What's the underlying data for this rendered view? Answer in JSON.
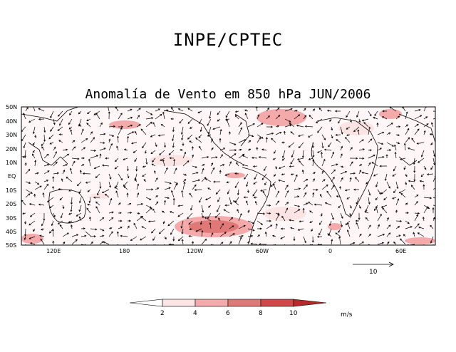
{
  "header": {
    "organization": "INPE/CPTEC",
    "title": "Anomalía de Vento em 850 hPa JUN/2006"
  },
  "map": {
    "lat_labels": [
      "50N",
      "40N",
      "30N",
      "20N",
      "10N",
      "EQ",
      "10S",
      "20S",
      "30S",
      "40S",
      "50S"
    ],
    "lon_labels": [
      "120E",
      "180",
      "120W",
      "60W",
      "0",
      "60E"
    ],
    "lon_range_deg": [
      90,
      90
    ],
    "lat_range_deg": [
      50,
      -50
    ]
  },
  "reference_vector": {
    "value": "10",
    "units": "m/s"
  },
  "colorbar": {
    "levels": [
      "2",
      "4",
      "6",
      "8",
      "10"
    ],
    "units": "m/s",
    "colors": [
      "#ffffff",
      "#fde4e4",
      "#f4aaaa",
      "#e07878",
      "#cd4a4a",
      "#b72a2a"
    ]
  }
}
